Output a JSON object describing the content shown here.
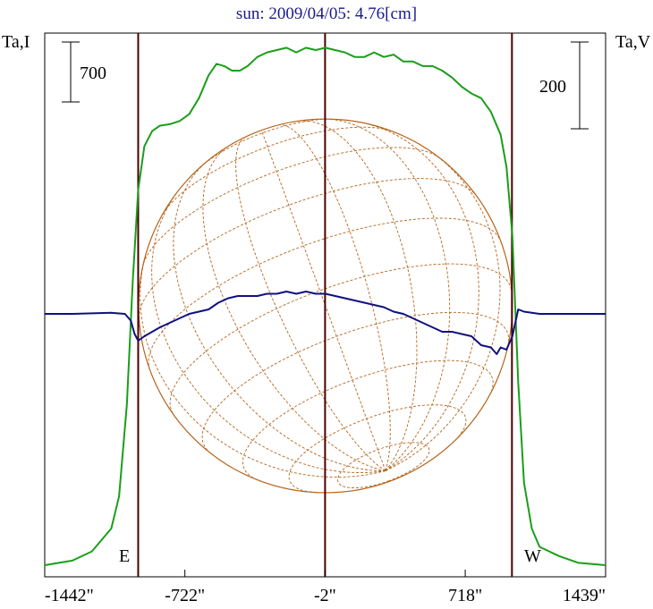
{
  "chart_data": {
    "type": "line",
    "title": "sun: 2009/04/05: 4.76[cm]",
    "left_axis_label": "Ta,I",
    "right_axis_label": "Ta,V",
    "left_scale_bar": "700",
    "right_scale_bar": "200",
    "east_label": "E",
    "west_label": "W",
    "x_range": [
      -1442,
      1439
    ],
    "x_ticks": [
      {
        "value": -1442,
        "label": "-1442\""
      },
      {
        "value": -722,
        "label": "-722\""
      },
      {
        "value": -2,
        "label": "-2\""
      },
      {
        "value": 718,
        "label": "718\""
      },
      {
        "value": 1439,
        "label": "1439\""
      }
    ],
    "limb_markers": [
      -962,
      -2,
      958
    ],
    "series": [
      {
        "color": "#1a9e1a",
        "x": [
          -1442,
          -1300,
          -1200,
          -1100,
          -1060,
          -1020,
          -990,
          -962,
          -930,
          -890,
          -850,
          -800,
          -750,
          -700,
          -650,
          -600,
          -560,
          -520,
          -480,
          -440,
          -400,
          -350,
          -300,
          -250,
          -200,
          -150,
          -100,
          -50,
          0,
          50,
          100,
          150,
          200,
          250,
          300,
          350,
          400,
          450,
          500,
          550,
          600,
          650,
          700,
          750,
          800,
          850,
          900,
          930,
          960,
          990,
          1020,
          1060,
          1100,
          1200,
          1300,
          1439
        ],
        "y": [
          0.0,
          0.01,
          0.03,
          0.08,
          0.15,
          0.35,
          0.62,
          0.82,
          0.915,
          0.948,
          0.96,
          0.963,
          0.97,
          0.985,
          1.02,
          1.07,
          1.095,
          1.09,
          1.08,
          1.08,
          1.09,
          1.11,
          1.12,
          1.125,
          1.13,
          1.12,
          1.13,
          1.125,
          1.13,
          1.125,
          1.12,
          1.11,
          1.11,
          1.12,
          1.11,
          1.115,
          1.1,
          1.1,
          1.09,
          1.09,
          1.08,
          1.065,
          1.045,
          1.03,
          1.02,
          0.99,
          0.94,
          0.87,
          0.72,
          0.4,
          0.18,
          0.08,
          0.04,
          0.02,
          0.005,
          0.0
        ]
      },
      {
        "color": "#101080",
        "x": [
          -1442,
          -1300,
          -1100,
          -1030,
          -1000,
          -980,
          -962,
          -930,
          -890,
          -850,
          -800,
          -750,
          -700,
          -650,
          -600,
          -550,
          -500,
          -450,
          -400,
          -350,
          -300,
          -250,
          -200,
          -150,
          -100,
          -50,
          0,
          50,
          100,
          150,
          200,
          250,
          300,
          350,
          400,
          450,
          500,
          550,
          600,
          650,
          700,
          750,
          800,
          850,
          880,
          900,
          930,
          960,
          990,
          1020,
          1060,
          1100,
          1200,
          1300,
          1439
        ],
        "y": [
          0.0,
          0.0,
          0.005,
          0.0,
          -0.03,
          -0.09,
          -0.12,
          -0.1,
          -0.08,
          -0.06,
          -0.04,
          -0.02,
          0.0,
          0.01,
          0.02,
          0.05,
          0.07,
          0.08,
          0.08,
          0.08,
          0.09,
          0.09,
          0.1,
          0.09,
          0.1,
          0.09,
          0.09,
          0.08,
          0.07,
          0.06,
          0.05,
          0.04,
          0.03,
          0.01,
          0.0,
          -0.02,
          -0.04,
          -0.06,
          -0.08,
          -0.08,
          -0.09,
          -0.1,
          -0.14,
          -0.15,
          -0.18,
          -0.15,
          -0.16,
          -0.1,
          0.02,
          0.01,
          0.005,
          0.0,
          0.0,
          0.0,
          0.0
        ]
      }
    ],
    "solar_disk": {
      "line_color": "#b5651d",
      "radius_arcsec": 960,
      "meridians_deg": [
        -75,
        -60,
        -45,
        -30,
        -15,
        0,
        15,
        30,
        45,
        60,
        75
      ],
      "parallels_deg": [
        -75,
        -60,
        -45,
        -30,
        -15,
        0,
        15,
        30,
        45,
        60,
        75
      ]
    },
    "vertical_line_color": "#4a0000"
  }
}
